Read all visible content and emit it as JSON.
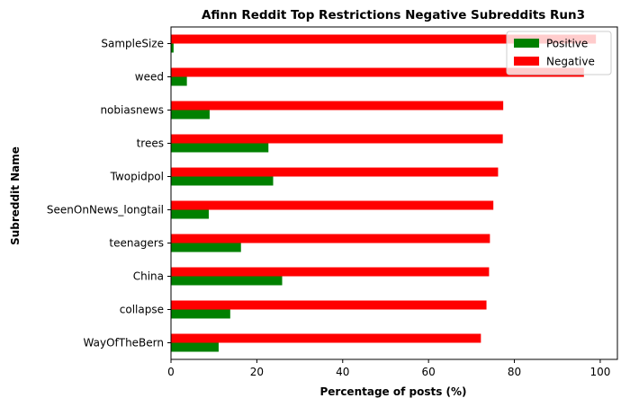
{
  "chart_data": {
    "type": "bar",
    "orientation": "horizontal",
    "title": "Afinn Reddit Top Restrictions Negative Subreddits Run3",
    "xlabel": "Percentage of posts (%)",
    "ylabel": "Subreddit Name",
    "xlim": [
      0,
      104
    ],
    "xticks": [
      0,
      20,
      40,
      60,
      80,
      100
    ],
    "grid": false,
    "legend_position": "top-right",
    "categories": [
      "WayOfTheBern",
      "collapse",
      "China",
      "teenagers",
      "SeenOnNews_longtail",
      "Twopidpol",
      "trees",
      "nobiasnews",
      "weed",
      "SampleSize"
    ],
    "series": [
      {
        "name": "Positive",
        "color": "#008000",
        "values": [
          11.1,
          13.8,
          25.9,
          16.3,
          8.8,
          23.8,
          22.7,
          9.0,
          3.7,
          0.6
        ]
      },
      {
        "name": "Negative",
        "color": "#ff0000",
        "values": [
          72.2,
          73.5,
          74.1,
          74.3,
          75.1,
          76.2,
          77.3,
          77.4,
          96.2,
          99.0
        ]
      }
    ]
  }
}
